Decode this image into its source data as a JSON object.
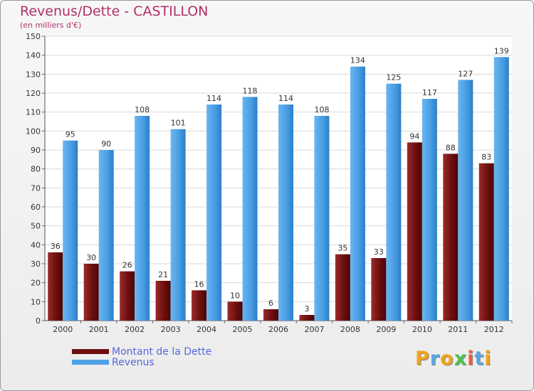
{
  "chart_data": {
    "type": "bar",
    "title": "Revenus/Dette - CASTILLON",
    "subtitle": "(en milliers d'€)",
    "xlabel": "",
    "ylabel": "",
    "ylim": [
      0,
      150
    ],
    "ytick_step": 10,
    "grid": true,
    "categories": [
      "2000",
      "2001",
      "2002",
      "2003",
      "2004",
      "2005",
      "2006",
      "2007",
      "2008",
      "2009",
      "2010",
      "2011",
      "2012"
    ],
    "series": [
      {
        "name": "Montant de la Dette",
        "color": "#7a1515",
        "values": [
          36,
          30,
          26,
          21,
          16,
          10,
          6,
          3,
          35,
          33,
          94,
          88,
          83
        ]
      },
      {
        "name": "Revenus",
        "color": "#4ea2e6",
        "values": [
          95,
          90,
          108,
          101,
          114,
          118,
          114,
          108,
          134,
          125,
          117,
          127,
          139
        ]
      }
    ],
    "legend_position": "bottom-left"
  },
  "brand": {
    "text": "Proxiti"
  }
}
